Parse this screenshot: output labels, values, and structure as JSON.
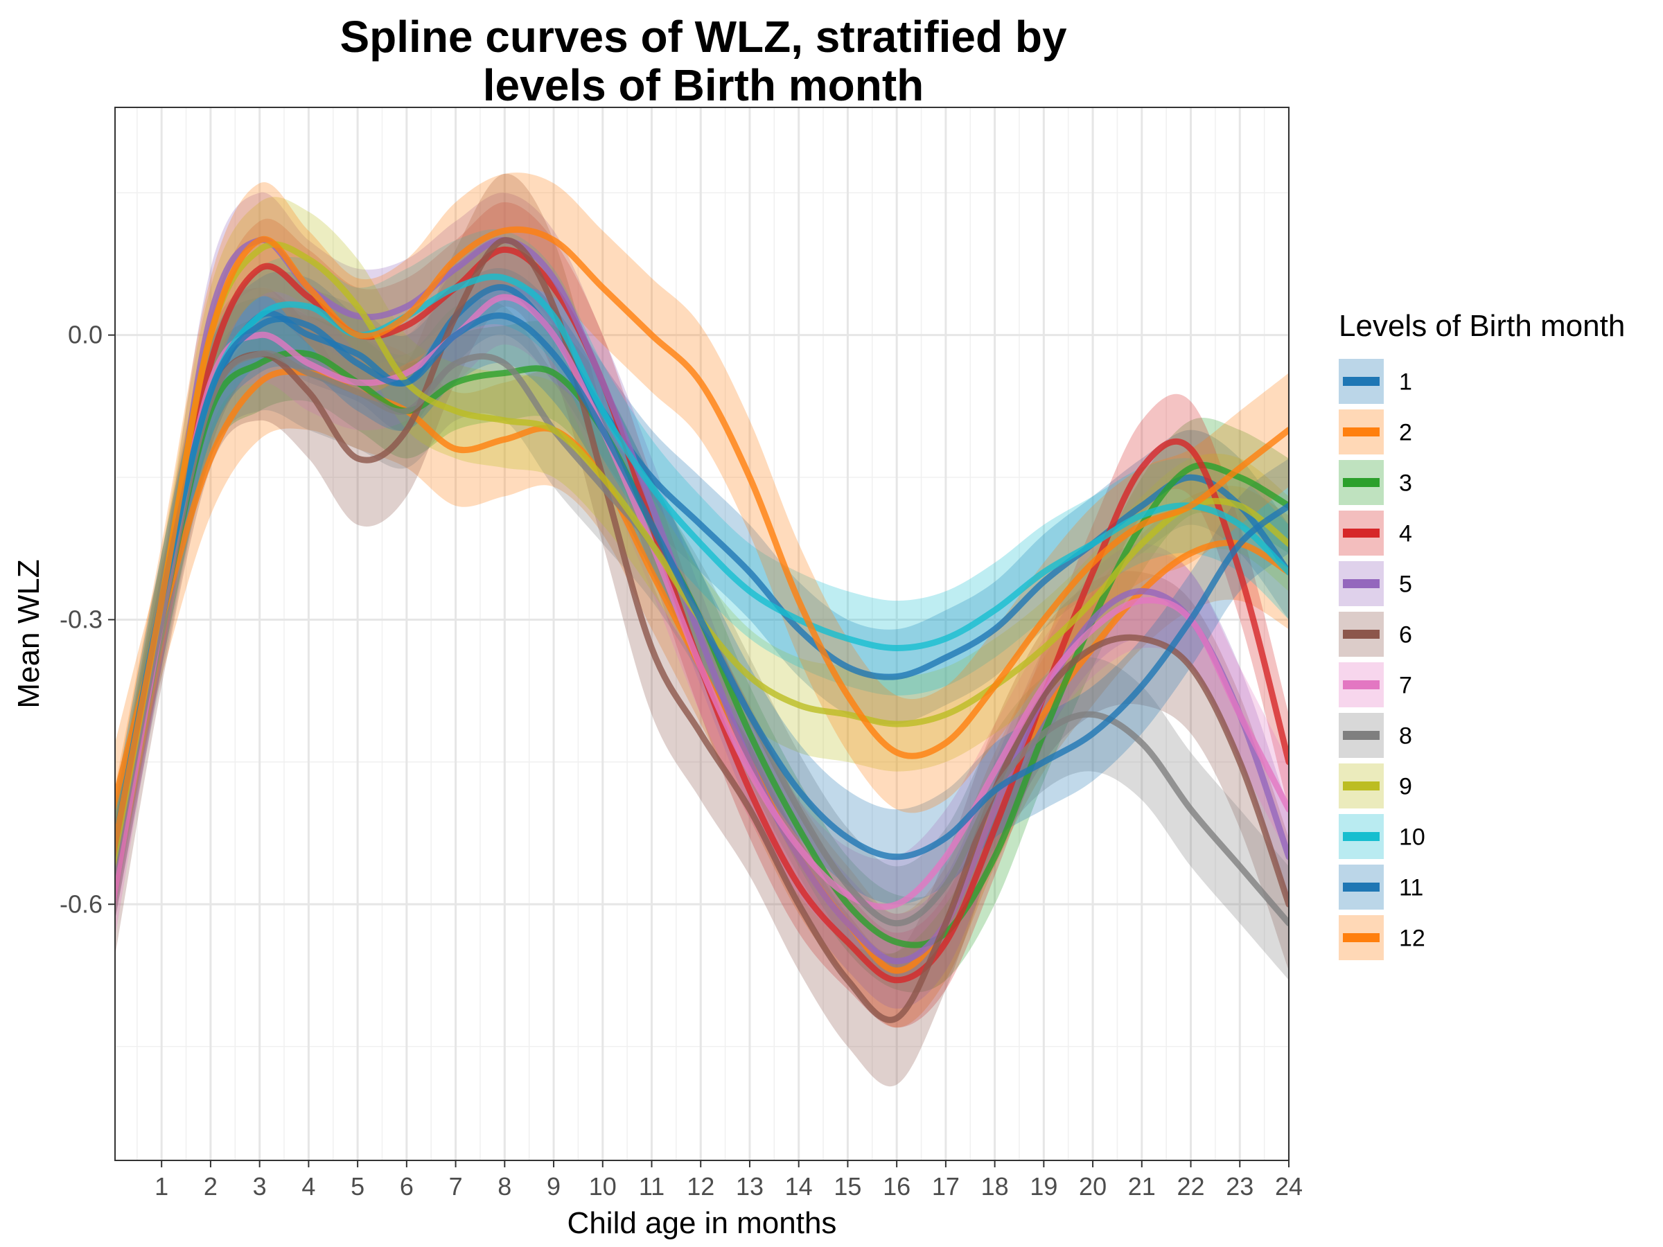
{
  "chart_data": {
    "type": "line",
    "title": "Spline curves of WLZ, stratified by levels of Birth month",
    "title_lines": [
      "Spline curves of WLZ, stratified by",
      "levels of Birth month"
    ],
    "xlabel": "Child age in months",
    "ylabel": "Mean WLZ",
    "xlim": [
      0.05,
      24
    ],
    "ylim": [
      -0.87,
      0.24
    ],
    "x_ticks": [
      1,
      2,
      3,
      4,
      5,
      6,
      7,
      8,
      9,
      10,
      11,
      12,
      13,
      14,
      15,
      16,
      17,
      18,
      19,
      20,
      21,
      22,
      23,
      24
    ],
    "x_tick_labels": [
      "1",
      "2",
      "3",
      "4",
      "5",
      "6",
      "7",
      "8",
      "9",
      "10",
      "11",
      "12",
      "13",
      "14",
      "15",
      "16",
      "17",
      "18",
      "19",
      "20",
      "21",
      "22",
      "23",
      "24"
    ],
    "y_ticks": [
      0.0,
      -0.3,
      -0.6
    ],
    "y_tick_labels": [
      "0.0",
      "-0.3",
      "-0.6"
    ],
    "grid": true,
    "legend_title": "Levels of Birth month",
    "legend_position": "right",
    "x": [
      0,
      1,
      2,
      3,
      4,
      5,
      6,
      7,
      8,
      9,
      10,
      11,
      12,
      13,
      14,
      15,
      16,
      17,
      18,
      19,
      20,
      21,
      22,
      23,
      24
    ],
    "series": [
      {
        "name": "1",
        "color": "#1F77B4",
        "band": 0.05,
        "values": [
          -0.56,
          -0.3,
          -0.07,
          0.02,
          0.0,
          -0.02,
          -0.05,
          0.02,
          0.05,
          0.0,
          -0.08,
          -0.15,
          -0.2,
          -0.25,
          -0.31,
          -0.35,
          -0.36,
          -0.34,
          -0.31,
          -0.26,
          -0.22,
          -0.18,
          -0.15,
          -0.18,
          -0.25
        ]
      },
      {
        "name": "2",
        "color": "#FF7F0E",
        "band": 0.06,
        "values": [
          -0.5,
          -0.3,
          -0.13,
          -0.05,
          -0.04,
          -0.06,
          -0.08,
          -0.12,
          -0.11,
          -0.1,
          -0.15,
          -0.25,
          -0.35,
          -0.45,
          -0.55,
          -0.62,
          -0.67,
          -0.62,
          -0.5,
          -0.4,
          -0.33,
          -0.27,
          -0.23,
          -0.22,
          -0.25
        ]
      },
      {
        "name": "3",
        "color": "#2CA02C",
        "band": 0.05,
        "values": [
          -0.57,
          -0.3,
          -0.08,
          -0.03,
          -0.02,
          -0.05,
          -0.08,
          -0.05,
          -0.04,
          -0.04,
          -0.1,
          -0.2,
          -0.3,
          -0.42,
          -0.52,
          -0.6,
          -0.64,
          -0.63,
          -0.55,
          -0.42,
          -0.3,
          -0.2,
          -0.14,
          -0.15,
          -0.18
        ]
      },
      {
        "name": "4",
        "color": "#D62728",
        "band": 0.05,
        "values": [
          -0.58,
          -0.3,
          -0.03,
          0.07,
          0.04,
          0.0,
          0.01,
          0.05,
          0.09,
          0.05,
          -0.05,
          -0.2,
          -0.35,
          -0.48,
          -0.58,
          -0.64,
          -0.68,
          -0.64,
          -0.52,
          -0.38,
          -0.25,
          -0.14,
          -0.12,
          -0.25,
          -0.45
        ]
      },
      {
        "name": "5",
        "color": "#9467BD",
        "band": 0.05,
        "values": [
          -0.58,
          -0.3,
          0.02,
          0.1,
          0.05,
          0.02,
          0.03,
          0.07,
          0.1,
          0.06,
          -0.05,
          -0.18,
          -0.32,
          -0.45,
          -0.55,
          -0.62,
          -0.66,
          -0.62,
          -0.5,
          -0.38,
          -0.3,
          -0.27,
          -0.3,
          -0.4,
          -0.55
        ]
      },
      {
        "name": "6",
        "color": "#8C564B",
        "band": 0.07,
        "values": [
          -0.6,
          -0.3,
          -0.07,
          -0.02,
          -0.06,
          -0.13,
          -0.1,
          0.02,
          0.1,
          0.03,
          -0.15,
          -0.33,
          -0.42,
          -0.5,
          -0.6,
          -0.68,
          -0.72,
          -0.62,
          -0.48,
          -0.38,
          -0.33,
          -0.32,
          -0.35,
          -0.45,
          -0.6
        ]
      },
      {
        "name": "7",
        "color": "#E377C2",
        "band": 0.05,
        "values": [
          -0.6,
          -0.3,
          -0.05,
          0.0,
          -0.03,
          -0.05,
          -0.04,
          0.0,
          0.04,
          0.0,
          -0.1,
          -0.22,
          -0.35,
          -0.46,
          -0.54,
          -0.59,
          -0.6,
          -0.55,
          -0.46,
          -0.37,
          -0.31,
          -0.28,
          -0.3,
          -0.4,
          -0.5
        ]
      },
      {
        "name": "8",
        "color": "#7F7F7F",
        "band": 0.06,
        "values": [
          -0.57,
          -0.3,
          -0.07,
          -0.02,
          -0.04,
          -0.06,
          -0.08,
          -0.03,
          -0.03,
          -0.1,
          -0.16,
          -0.22,
          -0.3,
          -0.4,
          -0.5,
          -0.58,
          -0.62,
          -0.58,
          -0.48,
          -0.42,
          -0.4,
          -0.43,
          -0.5,
          -0.56,
          -0.62
        ]
      },
      {
        "name": "9",
        "color": "#BCBD22",
        "band": 0.05,
        "values": [
          -0.56,
          -0.28,
          0.0,
          0.09,
          0.08,
          0.03,
          -0.05,
          -0.08,
          -0.09,
          -0.1,
          -0.15,
          -0.22,
          -0.3,
          -0.36,
          -0.39,
          -0.4,
          -0.41,
          -0.4,
          -0.37,
          -0.33,
          -0.28,
          -0.22,
          -0.18,
          -0.18,
          -0.22
        ]
      },
      {
        "name": "10",
        "color": "#17BECF",
        "band": 0.05,
        "values": [
          -0.55,
          -0.28,
          -0.06,
          0.02,
          0.03,
          0.0,
          0.02,
          0.05,
          0.06,
          0.02,
          -0.08,
          -0.16,
          -0.22,
          -0.27,
          -0.3,
          -0.32,
          -0.33,
          -0.32,
          -0.29,
          -0.25,
          -0.22,
          -0.19,
          -0.18,
          -0.2,
          -0.25
        ]
      },
      {
        "name": "11",
        "color": "#1F77B4",
        "band": 0.05,
        "values": [
          -0.55,
          -0.28,
          -0.06,
          0.01,
          0.01,
          -0.03,
          -0.05,
          0.0,
          0.02,
          -0.02,
          -0.1,
          -0.2,
          -0.3,
          -0.4,
          -0.48,
          -0.53,
          -0.55,
          -0.53,
          -0.48,
          -0.45,
          -0.42,
          -0.37,
          -0.3,
          -0.22,
          -0.18
        ]
      },
      {
        "name": "12",
        "color": "#FF7F0E",
        "band": 0.06,
        "values": [
          -0.55,
          -0.28,
          0.0,
          0.1,
          0.05,
          0.0,
          0.02,
          0.08,
          0.11,
          0.1,
          0.05,
          0.0,
          -0.05,
          -0.15,
          -0.28,
          -0.38,
          -0.44,
          -0.43,
          -0.37,
          -0.3,
          -0.24,
          -0.2,
          -0.18,
          -0.14,
          -0.1
        ]
      }
    ]
  }
}
